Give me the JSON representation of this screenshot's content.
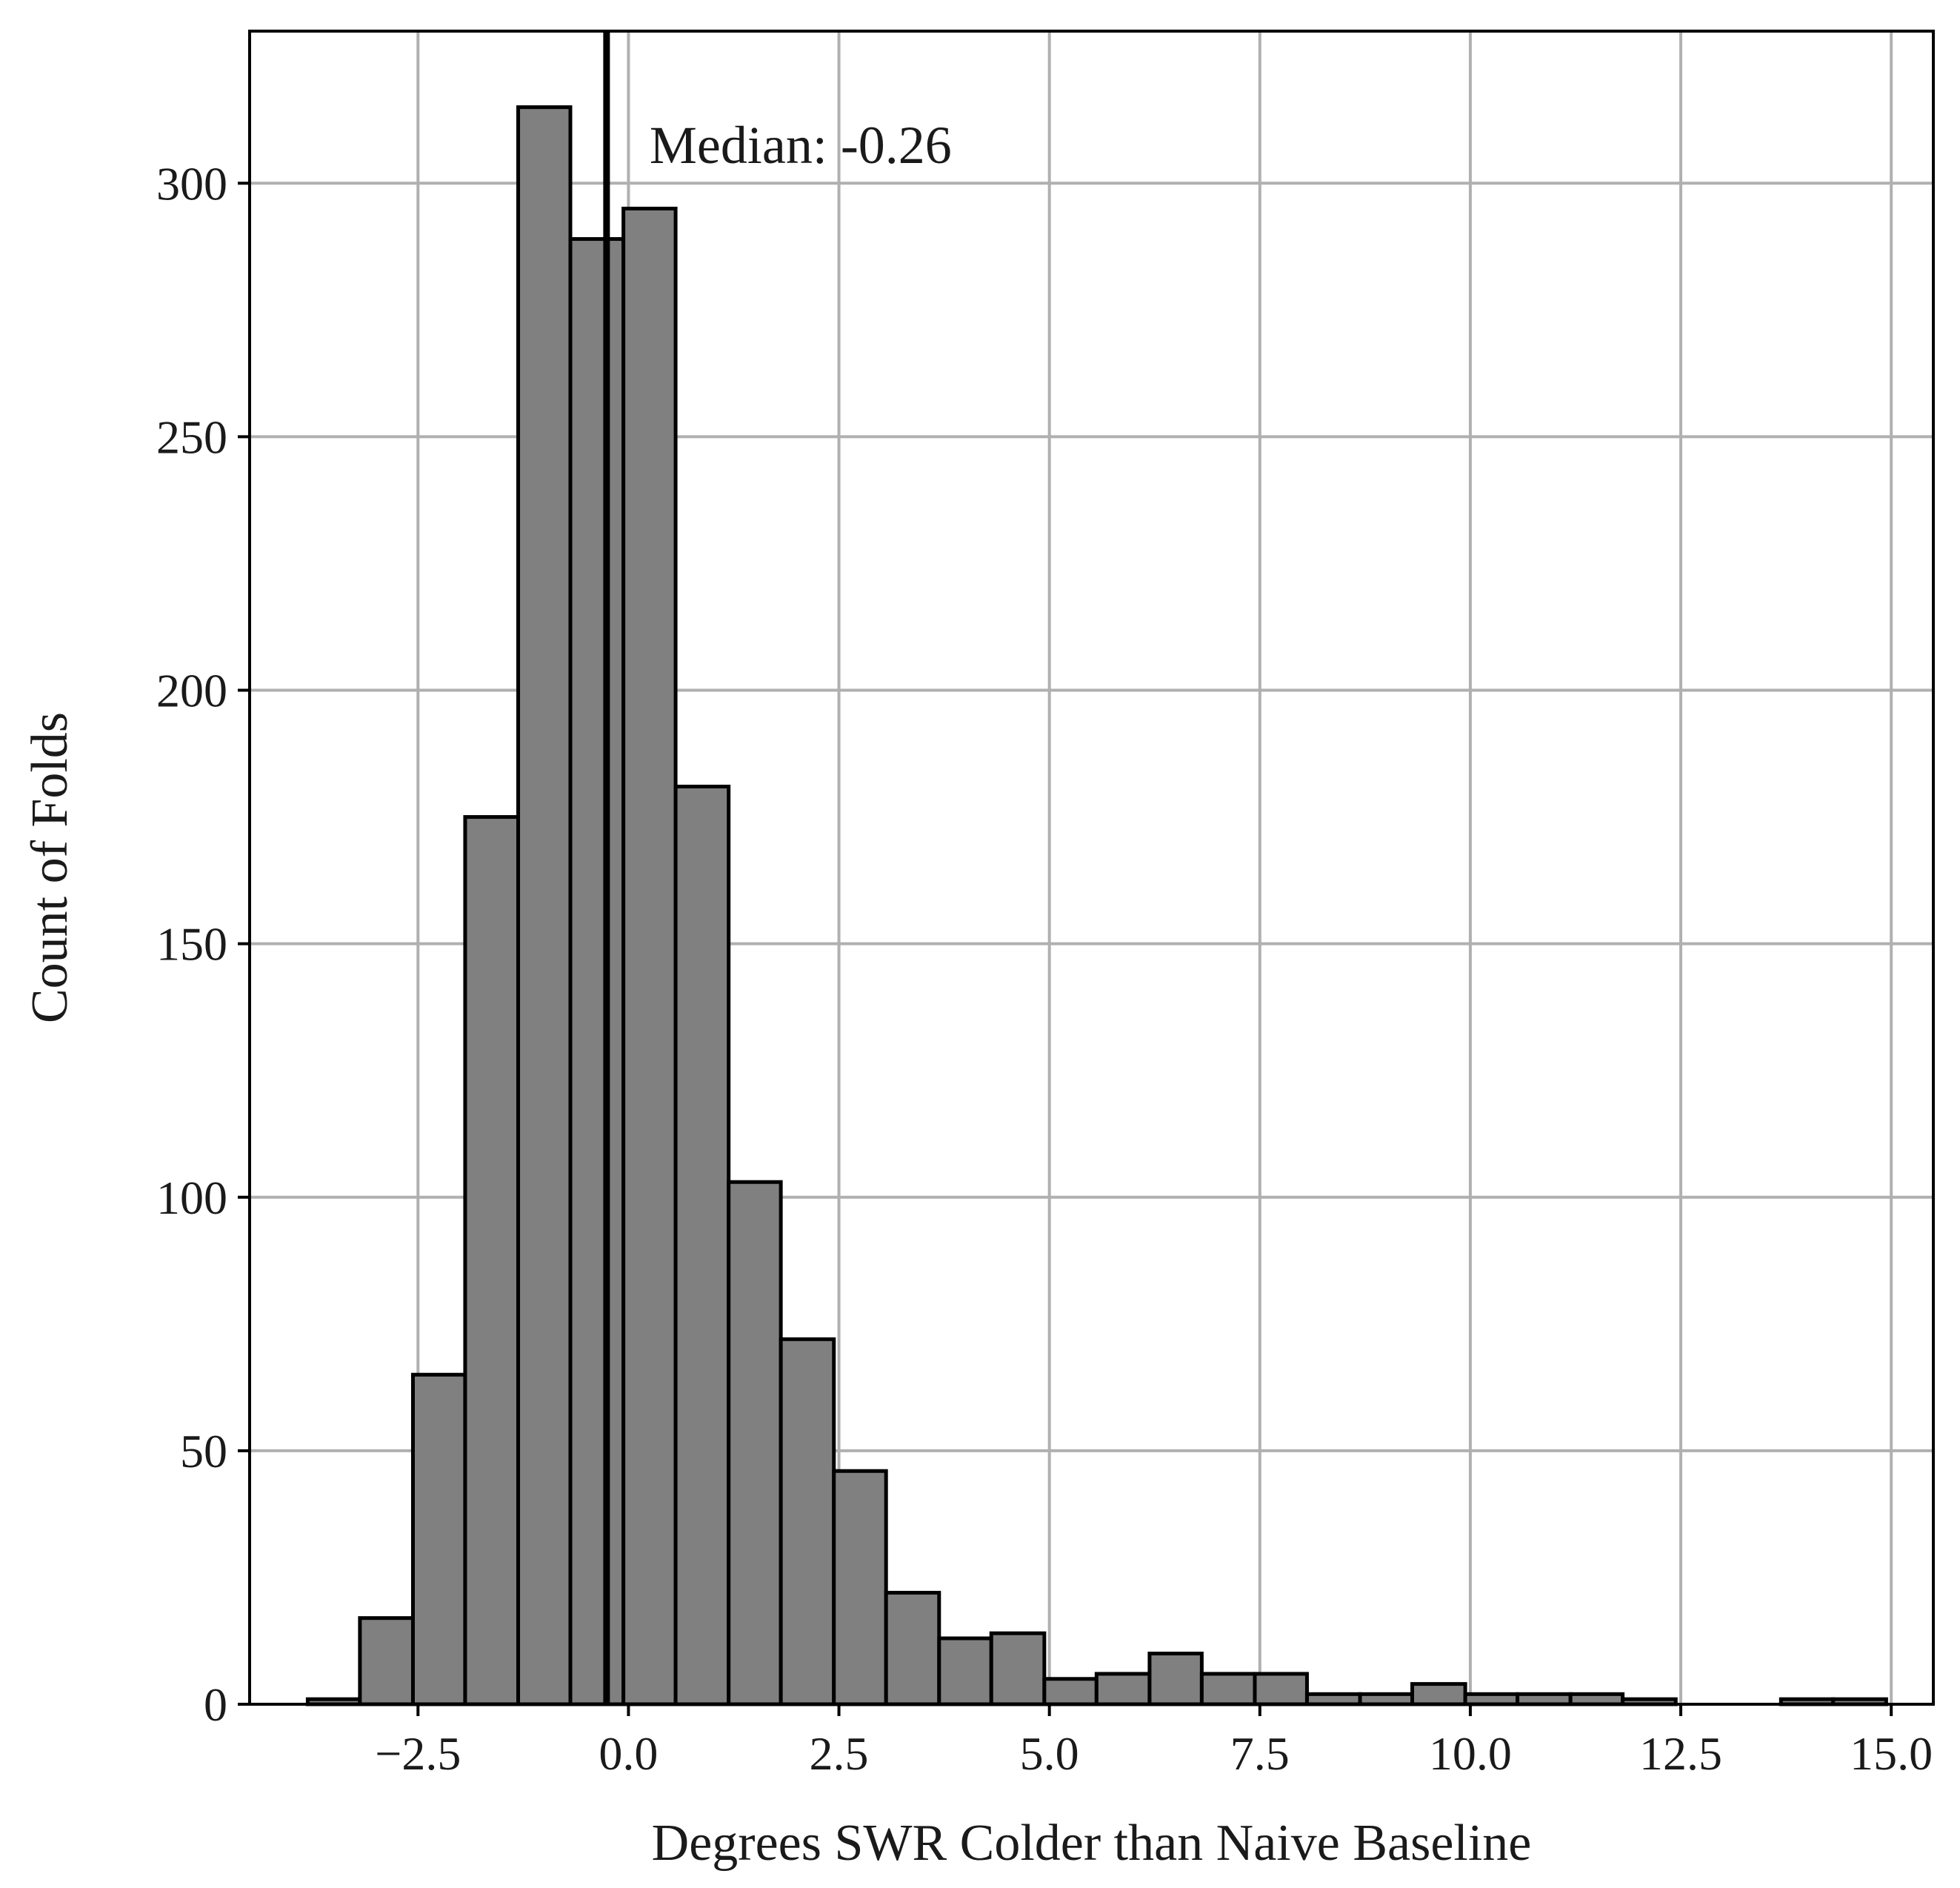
{
  "chart_data": {
    "type": "bar",
    "subtype": "histogram",
    "title": "",
    "xlabel": "Degrees SWR Colder than Naive Baseline",
    "ylabel": "Count of Folds",
    "xlim": [
      -4.5,
      15.5
    ],
    "ylim": [
      0,
      330
    ],
    "xticks": [
      -2.5,
      0.0,
      2.5,
      5.0,
      7.5,
      10.0,
      12.5,
      15.0
    ],
    "xtick_labels": [
      "−2.5",
      "0.0",
      "2.5",
      "5.0",
      "7.5",
      "10.0",
      "12.5",
      "15.0"
    ],
    "yticks": [
      0,
      50,
      100,
      150,
      200,
      250,
      300
    ],
    "ytick_labels": [
      "0",
      "50",
      "100",
      "150",
      "200",
      "250",
      "300"
    ],
    "grid": true,
    "bar_color": "#808080",
    "edge_color": "#000000",
    "bins": [
      {
        "x0": -3.81,
        "x1": -3.19,
        "count": 1
      },
      {
        "x0": -3.19,
        "x1": -2.56,
        "count": 17
      },
      {
        "x0": -2.56,
        "x1": -1.94,
        "count": 65
      },
      {
        "x0": -1.94,
        "x1": -1.31,
        "count": 175
      },
      {
        "x0": -1.31,
        "x1": -0.69,
        "count": 315
      },
      {
        "x0": -0.69,
        "x1": -0.06,
        "count": 289
      },
      {
        "x0": -0.06,
        "x1": 0.56,
        "count": 295
      },
      {
        "x0": 0.56,
        "x1": 1.19,
        "count": 181
      },
      {
        "x0": 1.19,
        "x1": 1.81,
        "count": 103
      },
      {
        "x0": 1.81,
        "x1": 2.44,
        "count": 72
      },
      {
        "x0": 2.44,
        "x1": 3.06,
        "count": 46
      },
      {
        "x0": 3.06,
        "x1": 3.69,
        "count": 22
      },
      {
        "x0": 3.69,
        "x1": 4.31,
        "count": 13
      },
      {
        "x0": 4.31,
        "x1": 4.94,
        "count": 14
      },
      {
        "x0": 4.94,
        "x1": 5.56,
        "count": 5
      },
      {
        "x0": 5.56,
        "x1": 6.19,
        "count": 6
      },
      {
        "x0": 6.19,
        "x1": 6.81,
        "count": 10
      },
      {
        "x0": 6.81,
        "x1": 7.44,
        "count": 6
      },
      {
        "x0": 7.44,
        "x1": 8.06,
        "count": 6
      },
      {
        "x0": 8.06,
        "x1": 8.69,
        "count": 2
      },
      {
        "x0": 8.69,
        "x1": 9.31,
        "count": 2
      },
      {
        "x0": 9.31,
        "x1": 9.94,
        "count": 4
      },
      {
        "x0": 9.94,
        "x1": 10.56,
        "count": 2
      },
      {
        "x0": 10.56,
        "x1": 11.19,
        "count": 2
      },
      {
        "x0": 11.19,
        "x1": 11.81,
        "count": 2
      },
      {
        "x0": 11.81,
        "x1": 12.44,
        "count": 1
      },
      {
        "x0": 12.44,
        "x1": 13.06,
        "count": 0
      },
      {
        "x0": 13.06,
        "x1": 13.69,
        "count": 0
      },
      {
        "x0": 13.69,
        "x1": 14.31,
        "count": 1
      },
      {
        "x0": 14.31,
        "x1": 14.94,
        "count": 1
      }
    ],
    "median": -0.26,
    "annotation": "Median: -0.26"
  }
}
